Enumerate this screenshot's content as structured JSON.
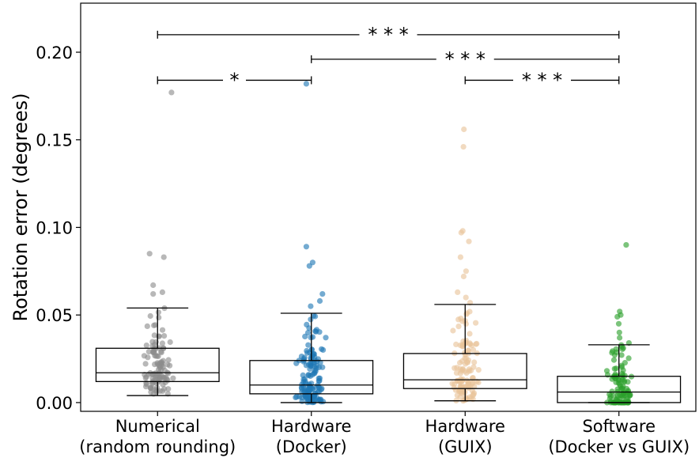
{
  "chart_data": {
    "type": "box",
    "title": "",
    "xlabel": "",
    "ylabel": "Rotation error (degrees)",
    "ylim": [
      -0.005,
      0.228
    ],
    "yticks": [
      0.0,
      0.05,
      0.1,
      0.15,
      0.2
    ],
    "ytick_labels": [
      "0.00",
      "0.05",
      "0.10",
      "0.15",
      "0.20"
    ],
    "grid": false,
    "categories": [
      {
        "line1": "Numerical",
        "line2": "(random rounding)"
      },
      {
        "line1": "Hardware",
        "line2": "(Docker)"
      },
      {
        "line1": "Hardware",
        "line2": "(GUIX)"
      },
      {
        "line1": "Software",
        "line2": "(Docker vs GUIX)"
      }
    ],
    "series": [
      {
        "color": "#8c8c8c",
        "whisker_low": 0.004,
        "q1": 0.012,
        "median": 0.017,
        "q3": 0.031,
        "whisker_high": 0.054,
        "outliers": [
          0.062,
          0.063,
          0.067,
          0.083,
          0.085,
          0.177
        ],
        "n_points": 120
      },
      {
        "color": "#1f77b4",
        "whisker_low": 0.0,
        "q1": 0.005,
        "median": 0.01,
        "q3": 0.024,
        "whisker_high": 0.051,
        "outliers": [
          0.055,
          0.058,
          0.062,
          0.078,
          0.08,
          0.089,
          0.182
        ],
        "n_points": 150
      },
      {
        "color": "#e8c39a",
        "whisker_low": 0.001,
        "q1": 0.008,
        "median": 0.013,
        "q3": 0.028,
        "whisker_high": 0.056,
        "outliers": [
          0.057,
          0.06,
          0.063,
          0.072,
          0.075,
          0.083,
          0.092,
          0.097,
          0.098,
          0.146,
          0.156
        ],
        "n_points": 130
      },
      {
        "color": "#2ca02c",
        "whisker_low": 0.0,
        "q1": 0.0,
        "median": 0.006,
        "q3": 0.015,
        "whisker_high": 0.033,
        "outliers": [
          0.034,
          0.037,
          0.04,
          0.045,
          0.049,
          0.05,
          0.052,
          0.09
        ],
        "n_points": 120
      }
    ],
    "significance": [
      {
        "from": 0,
        "to": 3,
        "y": 0.21,
        "label": "* * *"
      },
      {
        "from": 1,
        "to": 3,
        "y": 0.196,
        "label": "* * *"
      },
      {
        "from": 0,
        "to": 1,
        "y": 0.184,
        "label": "*"
      },
      {
        "from": 2,
        "to": 3,
        "y": 0.184,
        "label": "* * *"
      }
    ]
  }
}
